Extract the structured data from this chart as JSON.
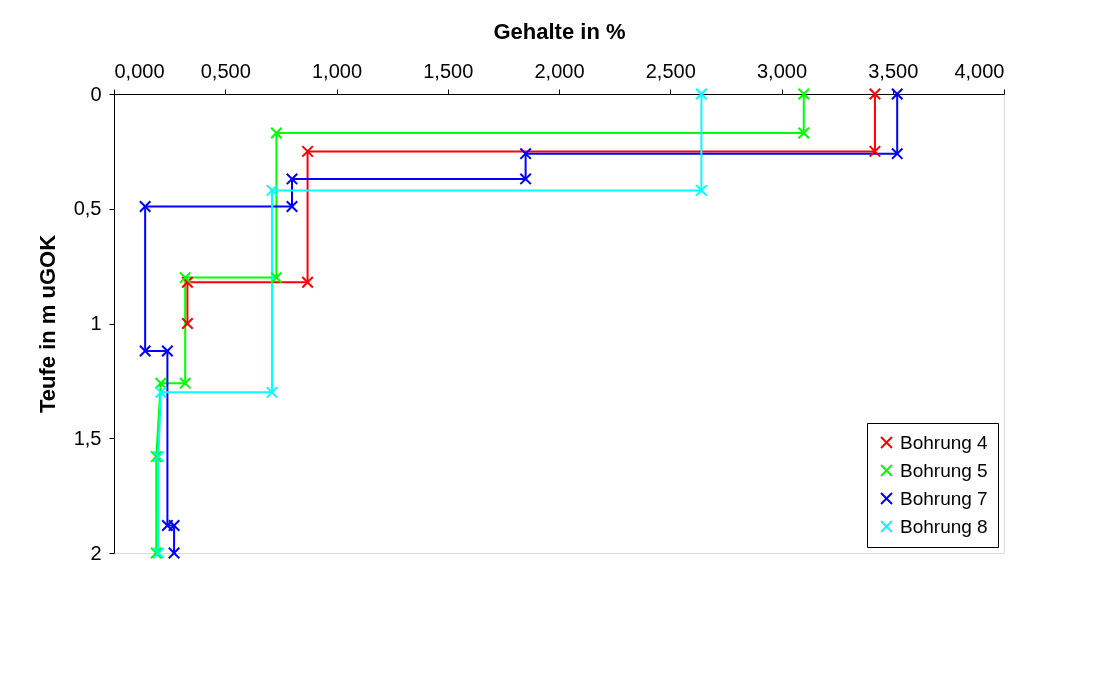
{
  "chart_data": {
    "type": "line",
    "xlabel": "Gehalte in %",
    "ylabel": "Teufe in m uGOK",
    "xlim": [
      0,
      4
    ],
    "xticks": [
      {
        "value": 0,
        "label": "0,000"
      },
      {
        "value": 0.5,
        "label": "0,500"
      },
      {
        "value": 1,
        "label": "1,000"
      },
      {
        "value": 1.5,
        "label": "1,500"
      },
      {
        "value": 2,
        "label": "2,000"
      },
      {
        "value": 2.5,
        "label": "2,500"
      },
      {
        "value": 3,
        "label": "3,000"
      },
      {
        "value": 3.5,
        "label": "3,500"
      },
      {
        "value": 4,
        "label": "4,000"
      }
    ],
    "ylim": [
      2,
      0
    ],
    "yticks": [
      0,
      {
        "value": 0.5,
        "label": "0,5"
      },
      1,
      {
        "value": 1.5,
        "label": "1,5"
      },
      2
    ],
    "grid": false,
    "legend": "bottom right",
    "marker": "cross",
    "line_style": "solid",
    "series": [
      {
        "name": "Bohrung 4",
        "color": "#ff0000",
        "x": [
          3.42,
          3.42,
          0.87,
          0.87,
          0.33,
          0.33
        ],
        "values": [
          0,
          0.25,
          0.25,
          0.82,
          0.82,
          1.0
        ]
      },
      {
        "name": "Bohrung 5",
        "color": "#00ff00",
        "x": [
          3.1,
          3.1,
          0.73,
          0.73,
          0.32,
          0.32,
          0.21,
          0.19,
          0.19
        ],
        "values": [
          0,
          0.17,
          0.17,
          0.8,
          0.8,
          1.26,
          1.26,
          1.58,
          2.0
        ]
      },
      {
        "name": "Bohrung 7",
        "color": "#0000ff",
        "x": [
          3.52,
          3.52,
          1.85,
          1.85,
          0.8,
          0.8,
          0.14,
          0.14,
          0.24,
          0.24,
          0.27,
          0.27
        ],
        "values": [
          0,
          0.26,
          0.26,
          0.37,
          0.37,
          0.49,
          0.49,
          1.12,
          1.12,
          1.88,
          1.88,
          2.0
        ]
      },
      {
        "name": "Bohrung 8",
        "color": "#00ffff",
        "x": [
          2.64,
          2.64,
          0.71,
          0.71,
          0.21,
          0.2,
          0.2
        ],
        "values": [
          0,
          0.42,
          0.42,
          1.3,
          1.3,
          1.58,
          2.0
        ]
      }
    ]
  }
}
